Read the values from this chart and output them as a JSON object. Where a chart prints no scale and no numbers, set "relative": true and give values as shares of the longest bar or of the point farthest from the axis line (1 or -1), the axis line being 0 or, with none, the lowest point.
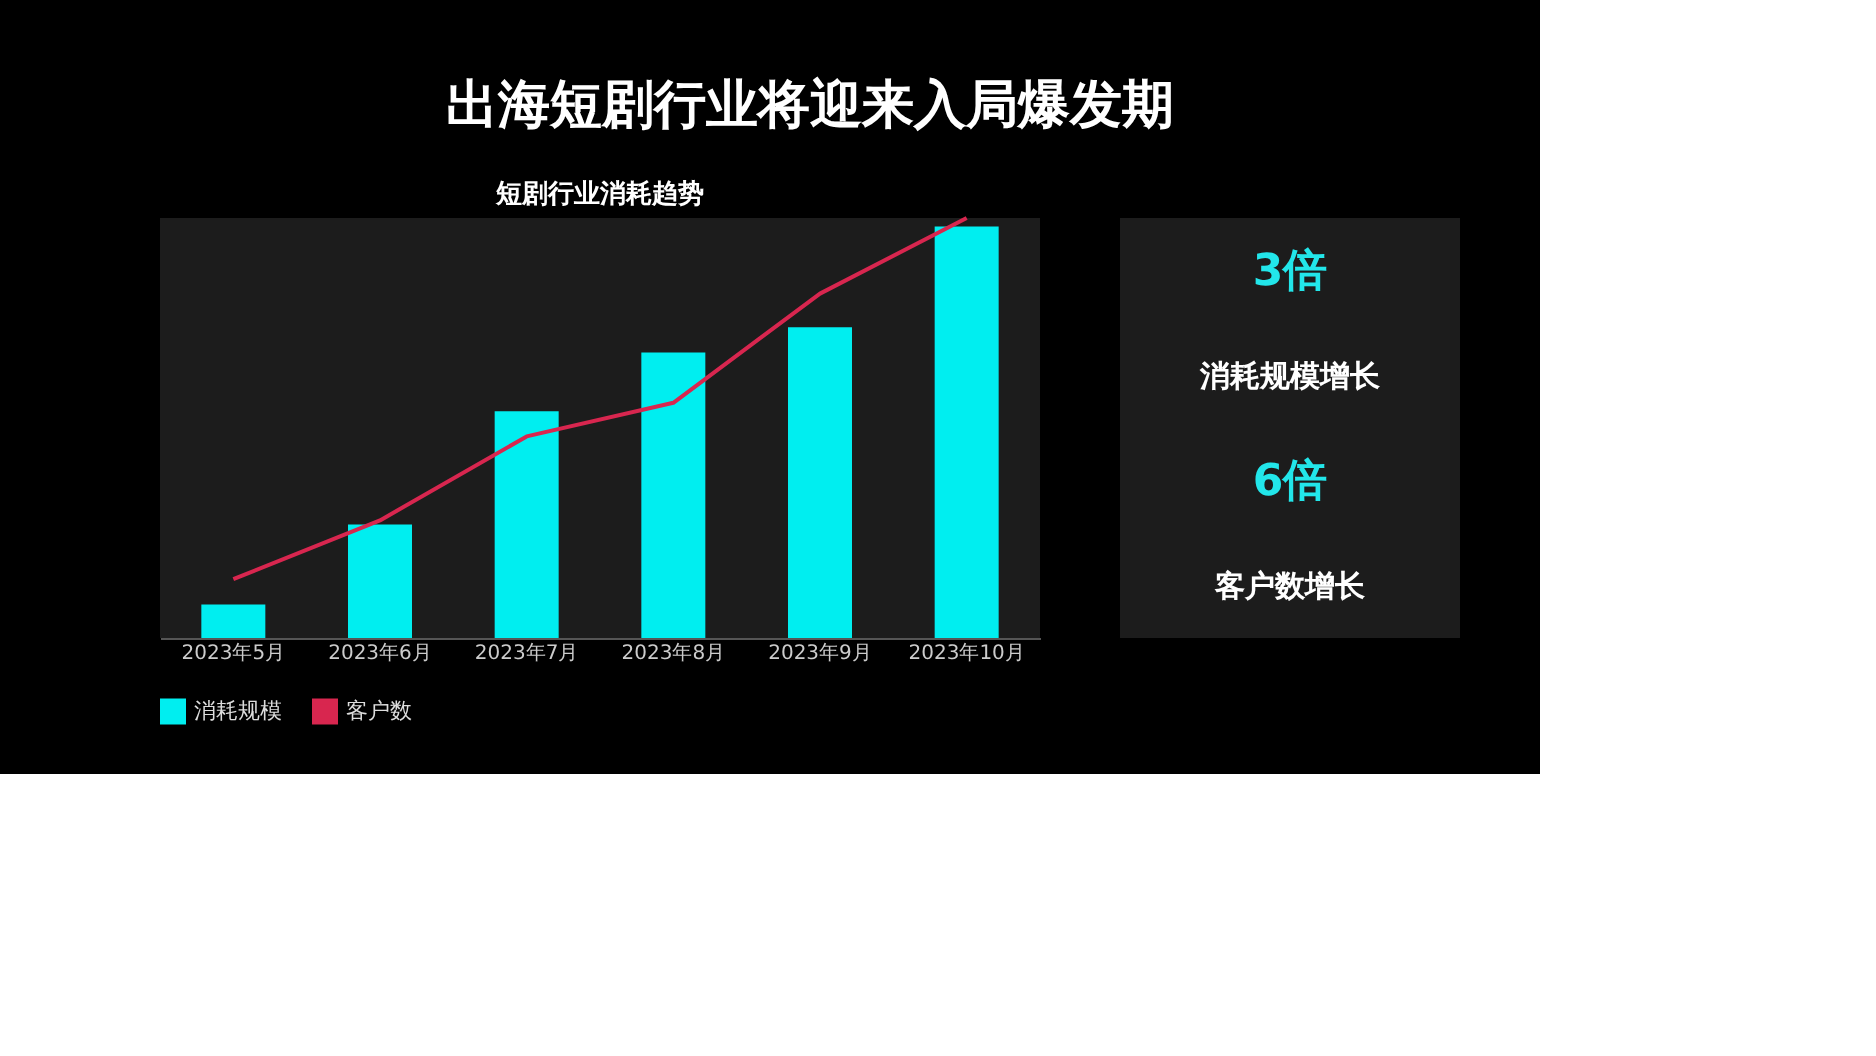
{
  "chart_data": {
    "type": "bar",
    "title": "出海短剧行业将迎来入局爆发期",
    "subtitle": "短剧行业消耗趋势",
    "categories": [
      "2023年5月",
      "2023年6月",
      "2023年7月",
      "2023年8月",
      "2023年9月",
      "2023年10月"
    ],
    "relative": true,
    "legend": "bottom",
    "series": [
      {
        "name": "消耗规模",
        "color": "#00eef0",
        "values": [
          0.08,
          0.27,
          0.54,
          0.68,
          0.74,
          0.98
        ]
      },
      {
        "name": "客户数",
        "type": "line",
        "color": "#d8264f",
        "values": [
          0.14,
          0.28,
          0.48,
          0.56,
          0.82,
          1.0
        ]
      }
    ],
    "annotations": [
      "3倍",
      "消耗规模增长",
      "6倍",
      "客户数增长"
    ]
  }
}
